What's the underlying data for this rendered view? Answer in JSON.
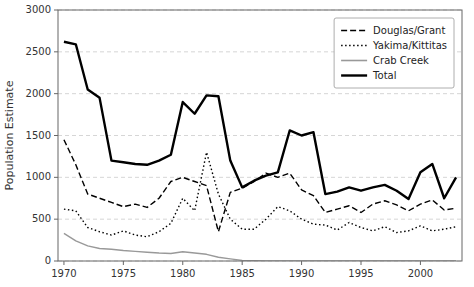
{
  "chart_data": {
    "type": "line",
    "y_label": "Population Estimate",
    "x": [
      1970,
      1971,
      1972,
      1973,
      1974,
      1975,
      1976,
      1977,
      1978,
      1979,
      1980,
      1981,
      1982,
      1983,
      1984,
      1985,
      1986,
      1987,
      1988,
      1989,
      1990,
      1991,
      1992,
      1993,
      1994,
      1995,
      1996,
      1997,
      1998,
      1999,
      2000,
      2001,
      2002,
      2003
    ],
    "series": [
      {
        "name": "Douglas/Grant",
        "color": "#000000",
        "line_style": "dashed",
        "values": [
          1450,
          1150,
          800,
          750,
          700,
          650,
          680,
          640,
          750,
          950,
          1000,
          950,
          900,
          350,
          820,
          870,
          950,
          1050,
          1000,
          1050,
          850,
          780,
          580,
          620,
          660,
          580,
          680,
          720,
          670,
          600,
          680,
          730,
          610,
          630
        ]
      },
      {
        "name": "Yakima/Kittitas",
        "color": "#000000",
        "line_style": "dotted",
        "values": [
          620,
          600,
          400,
          350,
          310,
          360,
          310,
          290,
          350,
          450,
          750,
          600,
          1300,
          800,
          500,
          380,
          380,
          500,
          650,
          600,
          500,
          440,
          430,
          370,
          460,
          400,
          360,
          410,
          340,
          360,
          420,
          360,
          380,
          410
        ]
      },
      {
        "name": "Crab Creek",
        "color": "#999999",
        "line_style": "solid",
        "values": [
          330,
          240,
          180,
          150,
          140,
          125,
          115,
          105,
          95,
          90,
          110,
          95,
          80,
          45,
          25,
          8,
          4,
          2,
          1,
          1,
          1,
          1,
          1,
          1,
          1,
          1,
          1,
          1,
          1,
          1,
          1,
          1,
          1,
          1
        ]
      },
      {
        "name": "Total",
        "color": "#000000",
        "line_style": "solid",
        "values": [
          2620,
          2590,
          2050,
          1950,
          1200,
          1180,
          1160,
          1150,
          1200,
          1270,
          1900,
          1760,
          1980,
          1970,
          1200,
          880,
          960,
          1020,
          1060,
          1560,
          1500,
          1540,
          800,
          830,
          880,
          840,
          880,
          910,
          840,
          740,
          1060,
          1160,
          750,
          1000
        ]
      }
    ],
    "xlim": [
      1969.5,
      2003.5
    ],
    "ylim": [
      0,
      3000
    ],
    "xticks": [
      1970,
      1975,
      1980,
      1985,
      1990,
      1995,
      2000
    ],
    "yticks": [
      0,
      500,
      1000,
      1500,
      2000,
      2500,
      3000
    ],
    "grid": true,
    "legend": "upper right"
  }
}
